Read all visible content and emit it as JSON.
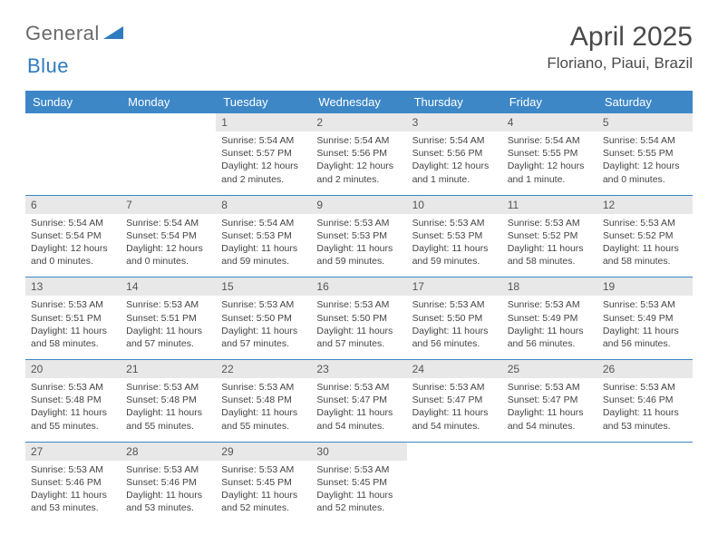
{
  "logo": {
    "word1": "General",
    "word2": "Blue"
  },
  "title": "April 2025",
  "location": "Floriano, Piaui, Brazil",
  "colors": {
    "header_bg": "#3d87c7",
    "header_text": "#ffffff",
    "daynum_bg": "#e8e8e8",
    "text": "#444444",
    "rule": "#3d87c7"
  },
  "day_headers": [
    "Sunday",
    "Monday",
    "Tuesday",
    "Wednesday",
    "Thursday",
    "Friday",
    "Saturday"
  ],
  "weeks": [
    [
      {
        "n": "",
        "sr": "",
        "ss": "",
        "dl": ""
      },
      {
        "n": "",
        "sr": "",
        "ss": "",
        "dl": ""
      },
      {
        "n": "1",
        "sr": "Sunrise: 5:54 AM",
        "ss": "Sunset: 5:57 PM",
        "dl": "Daylight: 12 hours and 2 minutes."
      },
      {
        "n": "2",
        "sr": "Sunrise: 5:54 AM",
        "ss": "Sunset: 5:56 PM",
        "dl": "Daylight: 12 hours and 2 minutes."
      },
      {
        "n": "3",
        "sr": "Sunrise: 5:54 AM",
        "ss": "Sunset: 5:56 PM",
        "dl": "Daylight: 12 hours and 1 minute."
      },
      {
        "n": "4",
        "sr": "Sunrise: 5:54 AM",
        "ss": "Sunset: 5:55 PM",
        "dl": "Daylight: 12 hours and 1 minute."
      },
      {
        "n": "5",
        "sr": "Sunrise: 5:54 AM",
        "ss": "Sunset: 5:55 PM",
        "dl": "Daylight: 12 hours and 0 minutes."
      }
    ],
    [
      {
        "n": "6",
        "sr": "Sunrise: 5:54 AM",
        "ss": "Sunset: 5:54 PM",
        "dl": "Daylight: 12 hours and 0 minutes."
      },
      {
        "n": "7",
        "sr": "Sunrise: 5:54 AM",
        "ss": "Sunset: 5:54 PM",
        "dl": "Daylight: 12 hours and 0 minutes."
      },
      {
        "n": "8",
        "sr": "Sunrise: 5:54 AM",
        "ss": "Sunset: 5:53 PM",
        "dl": "Daylight: 11 hours and 59 minutes."
      },
      {
        "n": "9",
        "sr": "Sunrise: 5:53 AM",
        "ss": "Sunset: 5:53 PM",
        "dl": "Daylight: 11 hours and 59 minutes."
      },
      {
        "n": "10",
        "sr": "Sunrise: 5:53 AM",
        "ss": "Sunset: 5:53 PM",
        "dl": "Daylight: 11 hours and 59 minutes."
      },
      {
        "n": "11",
        "sr": "Sunrise: 5:53 AM",
        "ss": "Sunset: 5:52 PM",
        "dl": "Daylight: 11 hours and 58 minutes."
      },
      {
        "n": "12",
        "sr": "Sunrise: 5:53 AM",
        "ss": "Sunset: 5:52 PM",
        "dl": "Daylight: 11 hours and 58 minutes."
      }
    ],
    [
      {
        "n": "13",
        "sr": "Sunrise: 5:53 AM",
        "ss": "Sunset: 5:51 PM",
        "dl": "Daylight: 11 hours and 58 minutes."
      },
      {
        "n": "14",
        "sr": "Sunrise: 5:53 AM",
        "ss": "Sunset: 5:51 PM",
        "dl": "Daylight: 11 hours and 57 minutes."
      },
      {
        "n": "15",
        "sr": "Sunrise: 5:53 AM",
        "ss": "Sunset: 5:50 PM",
        "dl": "Daylight: 11 hours and 57 minutes."
      },
      {
        "n": "16",
        "sr": "Sunrise: 5:53 AM",
        "ss": "Sunset: 5:50 PM",
        "dl": "Daylight: 11 hours and 57 minutes."
      },
      {
        "n": "17",
        "sr": "Sunrise: 5:53 AM",
        "ss": "Sunset: 5:50 PM",
        "dl": "Daylight: 11 hours and 56 minutes."
      },
      {
        "n": "18",
        "sr": "Sunrise: 5:53 AM",
        "ss": "Sunset: 5:49 PM",
        "dl": "Daylight: 11 hours and 56 minutes."
      },
      {
        "n": "19",
        "sr": "Sunrise: 5:53 AM",
        "ss": "Sunset: 5:49 PM",
        "dl": "Daylight: 11 hours and 56 minutes."
      }
    ],
    [
      {
        "n": "20",
        "sr": "Sunrise: 5:53 AM",
        "ss": "Sunset: 5:48 PM",
        "dl": "Daylight: 11 hours and 55 minutes."
      },
      {
        "n": "21",
        "sr": "Sunrise: 5:53 AM",
        "ss": "Sunset: 5:48 PM",
        "dl": "Daylight: 11 hours and 55 minutes."
      },
      {
        "n": "22",
        "sr": "Sunrise: 5:53 AM",
        "ss": "Sunset: 5:48 PM",
        "dl": "Daylight: 11 hours and 55 minutes."
      },
      {
        "n": "23",
        "sr": "Sunrise: 5:53 AM",
        "ss": "Sunset: 5:47 PM",
        "dl": "Daylight: 11 hours and 54 minutes."
      },
      {
        "n": "24",
        "sr": "Sunrise: 5:53 AM",
        "ss": "Sunset: 5:47 PM",
        "dl": "Daylight: 11 hours and 54 minutes."
      },
      {
        "n": "25",
        "sr": "Sunrise: 5:53 AM",
        "ss": "Sunset: 5:47 PM",
        "dl": "Daylight: 11 hours and 54 minutes."
      },
      {
        "n": "26",
        "sr": "Sunrise: 5:53 AM",
        "ss": "Sunset: 5:46 PM",
        "dl": "Daylight: 11 hours and 53 minutes."
      }
    ],
    [
      {
        "n": "27",
        "sr": "Sunrise: 5:53 AM",
        "ss": "Sunset: 5:46 PM",
        "dl": "Daylight: 11 hours and 53 minutes."
      },
      {
        "n": "28",
        "sr": "Sunrise: 5:53 AM",
        "ss": "Sunset: 5:46 PM",
        "dl": "Daylight: 11 hours and 53 minutes."
      },
      {
        "n": "29",
        "sr": "Sunrise: 5:53 AM",
        "ss": "Sunset: 5:45 PM",
        "dl": "Daylight: 11 hours and 52 minutes."
      },
      {
        "n": "30",
        "sr": "Sunrise: 5:53 AM",
        "ss": "Sunset: 5:45 PM",
        "dl": "Daylight: 11 hours and 52 minutes."
      },
      {
        "n": "",
        "sr": "",
        "ss": "",
        "dl": ""
      },
      {
        "n": "",
        "sr": "",
        "ss": "",
        "dl": ""
      },
      {
        "n": "",
        "sr": "",
        "ss": "",
        "dl": ""
      }
    ]
  ]
}
